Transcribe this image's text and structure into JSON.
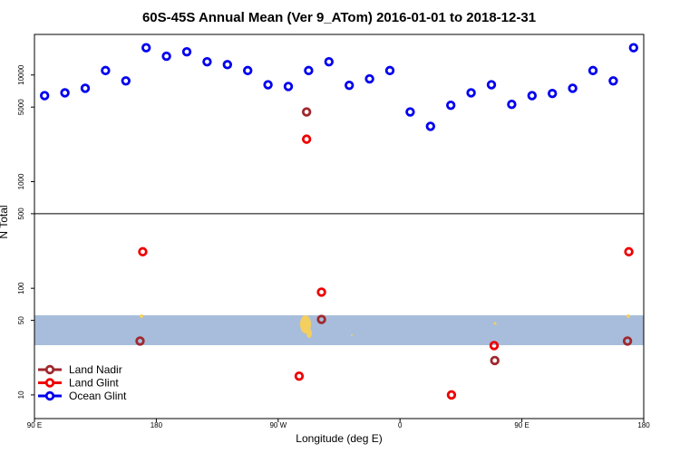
{
  "chart_data": {
    "type": "scatter",
    "title": "60S-45S Annual Mean (Ver 9_ATom)   2016-01-01 to 2018-12-31",
    "x_label": "Longitude (deg E)",
    "y_label": "N Total",
    "log_y": true,
    "xlim": [
      90,
      540
    ],
    "ylim": [
      6,
      24000
    ],
    "xticks": [
      {
        "value": 90,
        "label": "90 E"
      },
      180,
      {
        "value": 270,
        "label": "90 W"
      },
      {
        "value": 360,
        "label": "0"
      },
      {
        "value": 450,
        "label": "90 E"
      },
      {
        "value": 540,
        "label": "180"
      }
    ],
    "yticks": [
      10,
      50,
      100,
      500,
      1000,
      5000,
      10000
    ],
    "legend": "bottom-left",
    "series": [
      {
        "name": "Land Nadir",
        "color": "#a0282d",
        "x": [
          291,
          302,
          168,
          430,
          528
        ],
        "values": [
          4500,
          51,
          32,
          21,
          32
        ]
      },
      {
        "name": "Land Glint",
        "color": "#ee0000",
        "x": [
          291,
          170,
          302,
          285.5,
          429.5,
          398,
          529
        ],
        "values": [
          2500,
          220,
          92,
          15,
          29,
          10,
          220
        ]
      },
      {
        "name": "Ocean Glint",
        "color": "#0000ee",
        "x": [
          97.5,
          112.5,
          127.5,
          142.5,
          157.5,
          172.5,
          187.5,
          202.5,
          217.5,
          232.5,
          247.5,
          262.5,
          277.5,
          292.5,
          307.5,
          322.5,
          337.5,
          352.5,
          367.5,
          382.5,
          397.5,
          412.5,
          427.5,
          442.5,
          457.5,
          472.5,
          487.5,
          502.5,
          517.5,
          532.5
        ],
        "values": [
          6400,
          6800,
          7500,
          11000,
          8800,
          18000,
          15000,
          16500,
          13300,
          12500,
          11000,
          8100,
          7800,
          11000,
          13300,
          8000,
          9200,
          11000,
          4500,
          3300,
          5200,
          6800,
          8100,
          5300,
          6400,
          6700,
          7500,
          11000,
          8800,
          18000
        ]
      }
    ]
  }
}
